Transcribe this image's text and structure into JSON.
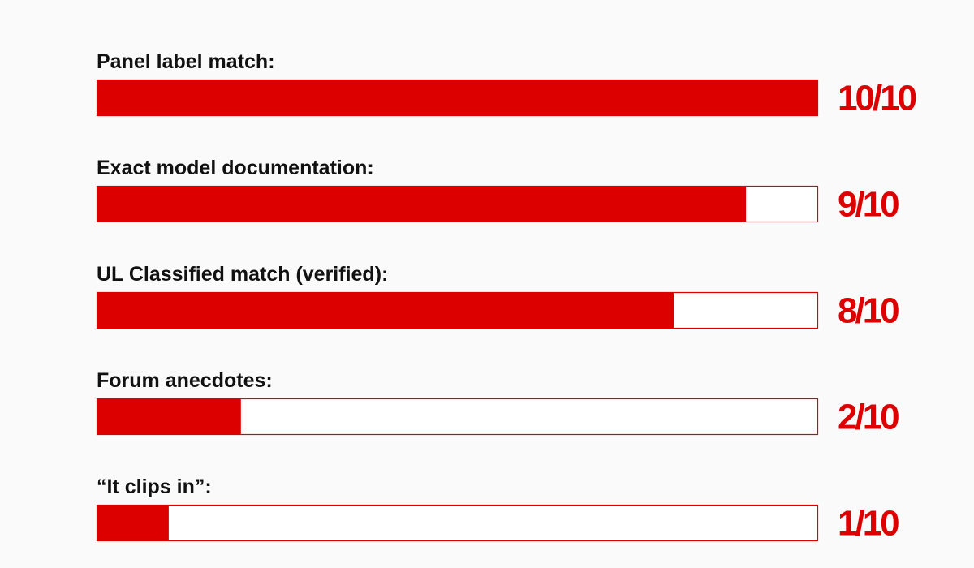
{
  "chart_data": {
    "type": "bar",
    "orientation": "horizontal",
    "categories": [
      "Panel label match:",
      "Exact model documentation:",
      "UL Classified match (verified):",
      "Forum anecdotes:",
      "“It clips in”:"
    ],
    "values": [
      10,
      9,
      8,
      2,
      1
    ],
    "value_labels": [
      "10/10",
      "9/10",
      "8/10",
      "2/10",
      "1/10"
    ],
    "color": "#dd0000",
    "xlim": [
      0,
      10
    ]
  }
}
